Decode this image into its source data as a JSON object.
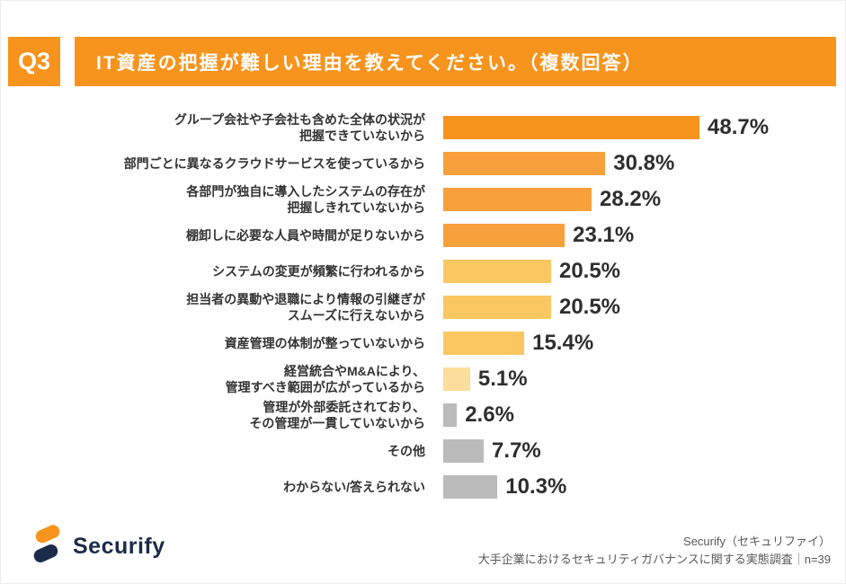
{
  "accent_color": "#F7941D",
  "header": {
    "question_number": "Q3",
    "title": "IT資産の把握が難しい理由を教えてください。（複数回答）"
  },
  "chart_data": {
    "type": "bar",
    "orientation": "horizontal",
    "title": "IT資産の把握が難しい理由",
    "xlabel": "",
    "ylabel": "",
    "xlim": [
      0,
      55
    ],
    "grid": false,
    "legend": "none",
    "categories": [
      "グループ会社や子会社も含めた全体の状況が\n把握できていないから",
      "部門ごとに異なるクラウドサービスを使っているから",
      "各部門が独自に導入したシステムの存在が\n把握しきれていないから",
      "棚卸しに必要な人員や時間が足りないから",
      "システムの変更が頻繁に行われるから",
      "担当者の異動や退職により情報の引継ぎが\nスムーズに行えないから",
      "資産管理の体制が整っていないから",
      "経営統合やM&Aにより、\n管理すべき範囲が広がっているから",
      "管理が外部委託されており、\nその管理が一貫していないから",
      "その他",
      "わからない/答えられない"
    ],
    "values": [
      48.7,
      30.8,
      28.2,
      23.1,
      20.5,
      20.5,
      15.4,
      5.1,
      2.6,
      7.7,
      10.3
    ],
    "value_labels": [
      "48.7%",
      "30.8%",
      "28.2%",
      "23.1%",
      "20.5%",
      "20.5%",
      "15.4%",
      "5.1%",
      "2.6%",
      "7.7%",
      "10.3%"
    ],
    "bar_colors": [
      "#F7941D",
      "#F8A13C",
      "#F8A13C",
      "#F8A13C",
      "#FBC761",
      "#FBC761",
      "#FBC761",
      "#FCDD9B",
      "#BBBBBB",
      "#BBBBBB",
      "#BBBBBB"
    ]
  },
  "footer": {
    "brand": "Securify",
    "logo_colors": {
      "orange": "#F7941D",
      "navy": "#1c2b4a"
    },
    "source_line1": "Securify（セキュリファイ）",
    "source_line2": "大手企業におけるセキュリティガバナンスに関する実態調査｜n=39"
  }
}
